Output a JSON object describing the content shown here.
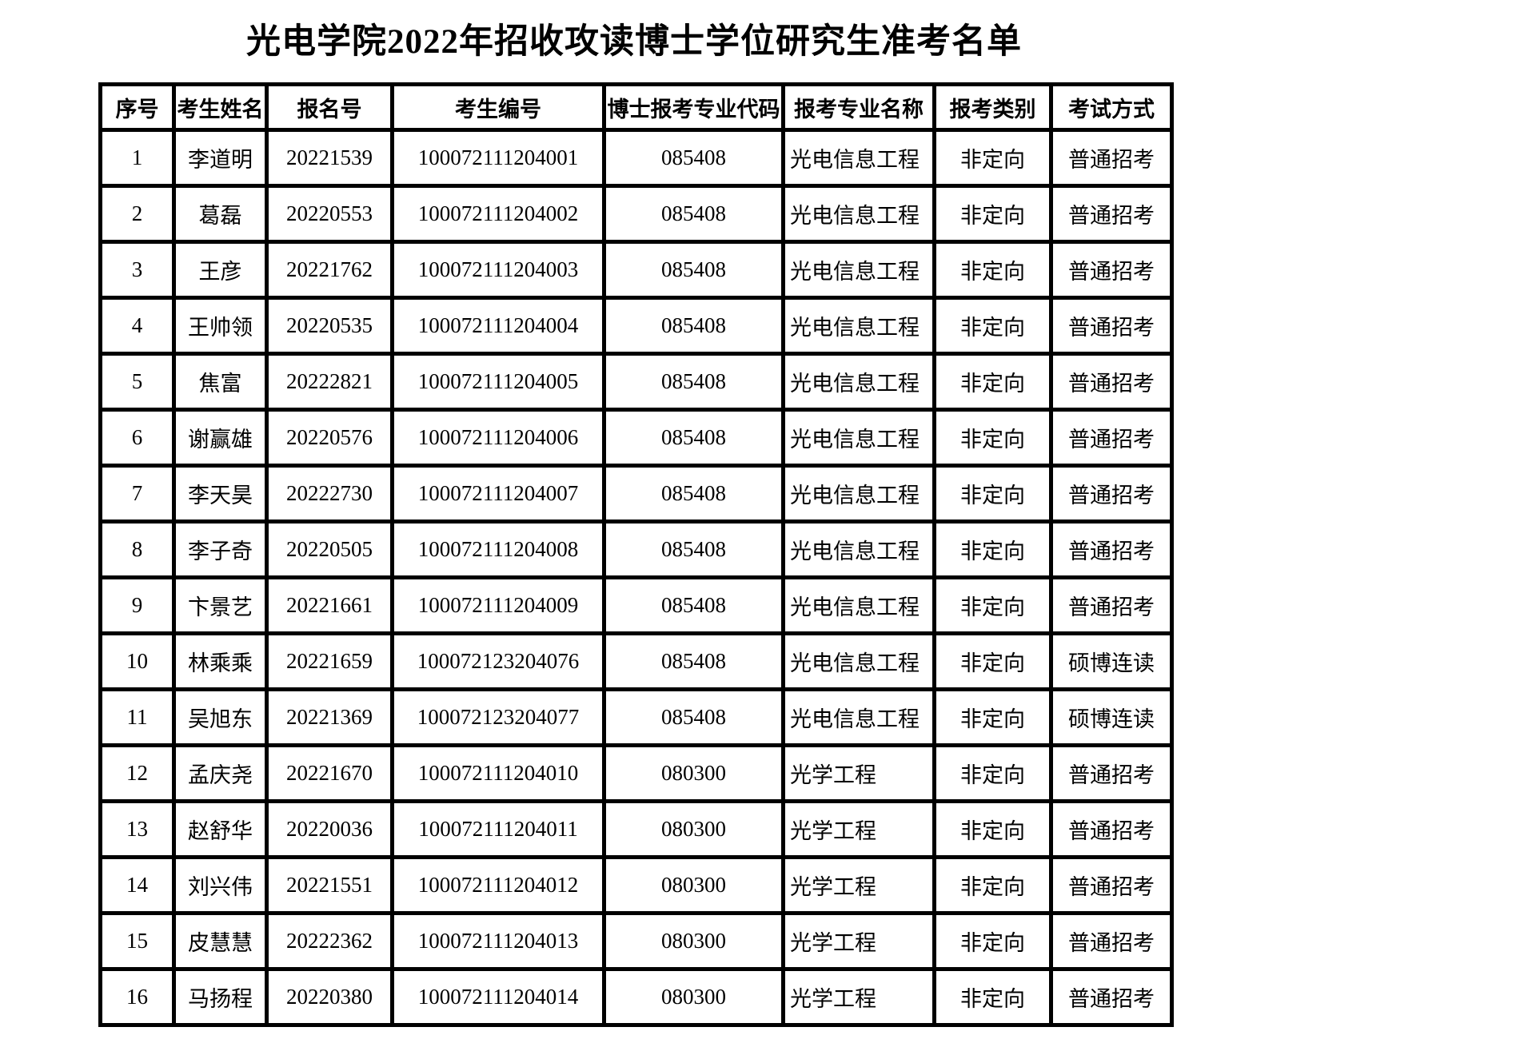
{
  "page": {
    "title": "光电学院2022年招收攻读博士学位研究生准考名单"
  },
  "table": {
    "headers": [
      "序号",
      "考生姓名",
      "报名号",
      "考生编号",
      "博士报考专业代码",
      "报考专业名称",
      "报考类别",
      "考试方式"
    ],
    "rows": [
      [
        "1",
        "李道明",
        "20221539",
        "100072111204001",
        "085408",
        "光电信息工程",
        "非定向",
        "普通招考"
      ],
      [
        "2",
        "葛磊",
        "20220553",
        "100072111204002",
        "085408",
        "光电信息工程",
        "非定向",
        "普通招考"
      ],
      [
        "3",
        "王彦",
        "20221762",
        "100072111204003",
        "085408",
        "光电信息工程",
        "非定向",
        "普通招考"
      ],
      [
        "4",
        "王帅领",
        "20220535",
        "100072111204004",
        "085408",
        "光电信息工程",
        "非定向",
        "普通招考"
      ],
      [
        "5",
        "焦富",
        "20222821",
        "100072111204005",
        "085408",
        "光电信息工程",
        "非定向",
        "普通招考"
      ],
      [
        "6",
        "谢赢雄",
        "20220576",
        "100072111204006",
        "085408",
        "光电信息工程",
        "非定向",
        "普通招考"
      ],
      [
        "7",
        "李天昊",
        "20222730",
        "100072111204007",
        "085408",
        "光电信息工程",
        "非定向",
        "普通招考"
      ],
      [
        "8",
        "李子奇",
        "20220505",
        "100072111204008",
        "085408",
        "光电信息工程",
        "非定向",
        "普通招考"
      ],
      [
        "9",
        "卞景艺",
        "20221661",
        "100072111204009",
        "085408",
        "光电信息工程",
        "非定向",
        "普通招考"
      ],
      [
        "10",
        "林乘乘",
        "20221659",
        "100072123204076",
        "085408",
        "光电信息工程",
        "非定向",
        "硕博连读"
      ],
      [
        "11",
        "吴旭东",
        "20221369",
        "100072123204077",
        "085408",
        "光电信息工程",
        "非定向",
        "硕博连读"
      ],
      [
        "12",
        "孟庆尧",
        "20221670",
        "100072111204010",
        "080300",
        "光学工程",
        "非定向",
        "普通招考"
      ],
      [
        "13",
        "赵舒华",
        "20220036",
        "100072111204011",
        "080300",
        "光学工程",
        "非定向",
        "普通招考"
      ],
      [
        "14",
        "刘兴伟",
        "20221551",
        "100072111204012",
        "080300",
        "光学工程",
        "非定向",
        "普通招考"
      ],
      [
        "15",
        "皮慧慧",
        "20222362",
        "100072111204013",
        "080300",
        "光学工程",
        "非定向",
        "普通招考"
      ],
      [
        "16",
        "马扬程",
        "20220380",
        "100072111204014",
        "080300",
        "光学工程",
        "非定向",
        "普通招考"
      ]
    ]
  }
}
